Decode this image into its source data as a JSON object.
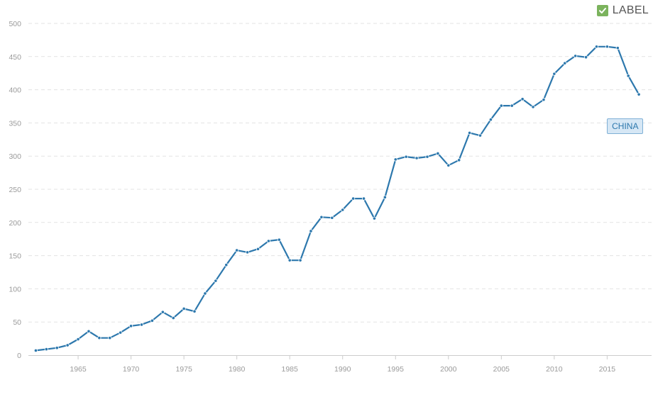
{
  "toggle": {
    "label": "LABEL",
    "checked": true,
    "icon": "checkbox-checked-icon",
    "color": "#7bb35d"
  },
  "chart_data": {
    "type": "line",
    "x": [
      1961,
      1962,
      1963,
      1964,
      1965,
      1966,
      1967,
      1968,
      1969,
      1970,
      1971,
      1972,
      1973,
      1974,
      1975,
      1976,
      1977,
      1978,
      1979,
      1980,
      1981,
      1982,
      1983,
      1984,
      1985,
      1986,
      1987,
      1988,
      1989,
      1990,
      1991,
      1992,
      1993,
      1994,
      1995,
      1996,
      1997,
      1998,
      1999,
      2000,
      2001,
      2002,
      2003,
      2004,
      2005,
      2006,
      2007,
      2008,
      2009,
      2010,
      2011,
      2012,
      2013,
      2014,
      2015,
      2016,
      2017,
      2018
    ],
    "series": [
      {
        "name": "CHINA",
        "color": "#2d78ad",
        "values": [
          7,
          9,
          11,
          15,
          24,
          36,
          26,
          26,
          34,
          44,
          46,
          52,
          65,
          56,
          70,
          66,
          93,
          112,
          136,
          158,
          155,
          160,
          172,
          174,
          143,
          143,
          187,
          208,
          207,
          219,
          236,
          236,
          206,
          238,
          295,
          299,
          297,
          299,
          304,
          286,
          294,
          335,
          331,
          355,
          376,
          376,
          386,
          374,
          385,
          424,
          440,
          451,
          449,
          465,
          465,
          463,
          421,
          393
        ]
      }
    ],
    "xticks": [
      "1965",
      "1970",
      "1975",
      "1980",
      "1985",
      "1990",
      "1995",
      "2000",
      "2005",
      "2010",
      "2015"
    ],
    "yticks": [
      "0",
      "50",
      "100",
      "150",
      "200",
      "250",
      "300",
      "350",
      "400",
      "450",
      "500"
    ],
    "xlim": [
      1960.3,
      2019.2
    ],
    "ylim": [
      0,
      500
    ],
    "grid": true,
    "xlabel": "",
    "ylabel": "",
    "title": ""
  }
}
